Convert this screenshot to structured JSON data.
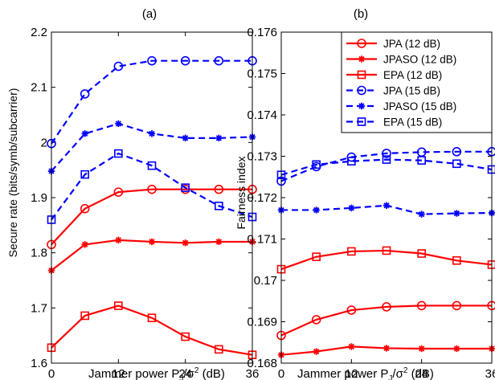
{
  "chart_data": [
    {
      "type": "line",
      "title": "(a)",
      "xlabel": "Jammer power P",
      "xlabel_sub": "J",
      "xlabel_mid": "/σ",
      "xlabel_sup": "2",
      "xlabel_tail": " (dB)",
      "ylabel": "Secure rate (bits/symb/subcarrier)",
      "xlim": [
        0,
        36
      ],
      "ylim": [
        1.6,
        2.2
      ],
      "xticks": [
        "0",
        "12",
        "24",
        "36"
      ],
      "xtick_values": [
        0,
        12,
        24,
        36
      ],
      "yticks": [
        "1.6",
        "1.7",
        "1.8",
        "1.9",
        "2",
        "2.1",
        "2.2"
      ],
      "ytick_values": [
        1.6,
        1.7,
        1.8,
        1.9,
        2.0,
        2.1,
        2.2
      ],
      "grid": false,
      "x": [
        0,
        6,
        12,
        18,
        24,
        30,
        36
      ],
      "series": [
        {
          "name": "JPA (12 dB)",
          "color": "#ff0000",
          "dash": "solid",
          "marker": "circle",
          "values": [
            1.815,
            1.88,
            1.91,
            1.915,
            1.915,
            1.915,
            1.915
          ]
        },
        {
          "name": "JPASO (12 dB)",
          "color": "#ff0000",
          "dash": "solid",
          "marker": "star",
          "values": [
            1.768,
            1.815,
            1.823,
            1.82,
            1.818,
            1.82,
            1.82
          ]
        },
        {
          "name": "EPA (12 dB)",
          "color": "#ff0000",
          "dash": "solid",
          "marker": "square",
          "values": [
            1.628,
            1.686,
            1.704,
            1.682,
            1.648,
            1.625,
            1.615
          ]
        },
        {
          "name": "JPA (15 dB)",
          "color": "#0000ff",
          "dash": "dashed",
          "marker": "circle",
          "values": [
            1.998,
            2.088,
            2.138,
            2.148,
            2.148,
            2.148,
            2.148
          ]
        },
        {
          "name": "JPASO (15 dB)",
          "color": "#0000ff",
          "dash": "dashed",
          "marker": "star",
          "values": [
            1.948,
            2.016,
            2.034,
            2.016,
            2.008,
            2.008,
            2.01
          ]
        },
        {
          "name": "EPA (15 dB)",
          "color": "#0000ff",
          "dash": "dashed",
          "marker": "square",
          "values": [
            1.86,
            1.942,
            1.98,
            1.958,
            1.918,
            1.885,
            1.865
          ]
        }
      ]
    },
    {
      "type": "line",
      "title": "(b)",
      "xlabel": "Jammer power P",
      "xlabel_sub": "J",
      "xlabel_mid": "/σ",
      "xlabel_sup": "2",
      "xlabel_tail": " (dB)",
      "ylabel": "Fairness index",
      "xlim": [
        0,
        36
      ],
      "ylim": [
        0.168,
        0.176
      ],
      "xticks": [
        "0",
        "12",
        "24",
        "36"
      ],
      "xtick_values": [
        0,
        12,
        24,
        36
      ],
      "yticks": [
        "0.168",
        "0.169",
        "0.17",
        "0.171",
        "0.172",
        "0.173",
        "0.174",
        "0.175",
        "0.176"
      ],
      "ytick_values": [
        0.168,
        0.169,
        0.17,
        0.171,
        0.172,
        0.173,
        0.174,
        0.175,
        0.176
      ],
      "grid": false,
      "legend": "top-right",
      "x": [
        0,
        6,
        12,
        18,
        24,
        30,
        36
      ],
      "series": [
        {
          "name": "JPA (12 dB)",
          "color": "#ff0000",
          "dash": "solid",
          "marker": "circle",
          "values": [
            0.16867,
            0.16905,
            0.16928,
            0.16936,
            0.16939,
            0.16939,
            0.16939
          ]
        },
        {
          "name": "JPASO (12 dB)",
          "color": "#ff0000",
          "dash": "solid",
          "marker": "star",
          "values": [
            0.1682,
            0.16828,
            0.1684,
            0.16836,
            0.16835,
            0.16835,
            0.16835
          ]
        },
        {
          "name": "EPA (12 dB)",
          "color": "#ff0000",
          "dash": "solid",
          "marker": "square",
          "values": [
            0.17027,
            0.17057,
            0.1707,
            0.17072,
            0.17065,
            0.17048,
            0.17038
          ]
        },
        {
          "name": "JPA (15 dB)",
          "color": "#0000ff",
          "dash": "dashed",
          "marker": "circle",
          "values": [
            0.1724,
            0.17275,
            0.17298,
            0.17307,
            0.1731,
            0.17311,
            0.17311
          ]
        },
        {
          "name": "JPASO (15 dB)",
          "color": "#0000ff",
          "dash": "dashed",
          "marker": "star",
          "values": [
            0.1717,
            0.1717,
            0.17175,
            0.17181,
            0.1716,
            0.17162,
            0.17163
          ]
        },
        {
          "name": "EPA (15 dB)",
          "color": "#0000ff",
          "dash": "dashed",
          "marker": "square",
          "values": [
            0.17255,
            0.1728,
            0.17288,
            0.17292,
            0.1729,
            0.17282,
            0.17268
          ]
        }
      ]
    }
  ]
}
